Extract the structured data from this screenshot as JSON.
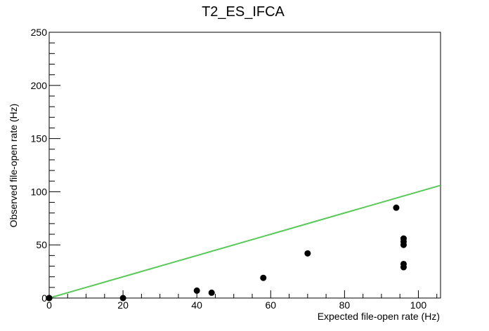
{
  "chart_data": {
    "type": "scatter",
    "title": "T2_ES_IFCA",
    "xlabel": "Expected file-open rate (Hz)",
    "ylabel": "Observed file-open rate (Hz)",
    "xlim": [
      0,
      106
    ],
    "ylim": [
      0,
      250
    ],
    "xticks": [
      0,
      20,
      40,
      60,
      80,
      100
    ],
    "yticks": [
      0,
      50,
      100,
      150,
      200,
      250
    ],
    "grid": false,
    "points": [
      {
        "x": 0,
        "y": 0
      },
      {
        "x": 0,
        "y": 0
      },
      {
        "x": 20,
        "y": 0
      },
      {
        "x": 40,
        "y": 7
      },
      {
        "x": 44,
        "y": 5
      },
      {
        "x": 58,
        "y": 19
      },
      {
        "x": 70,
        "y": 42
      },
      {
        "x": 94,
        "y": 85
      },
      {
        "x": 96,
        "y": 56
      },
      {
        "x": 96,
        "y": 53
      },
      {
        "x": 96,
        "y": 50
      },
      {
        "x": 96,
        "y": 32
      },
      {
        "x": 96,
        "y": 29
      }
    ],
    "reference_line": {
      "x": [
        0,
        106
      ],
      "y": [
        0,
        106
      ],
      "color": "#57c957"
    },
    "marker_color": "#000000"
  }
}
